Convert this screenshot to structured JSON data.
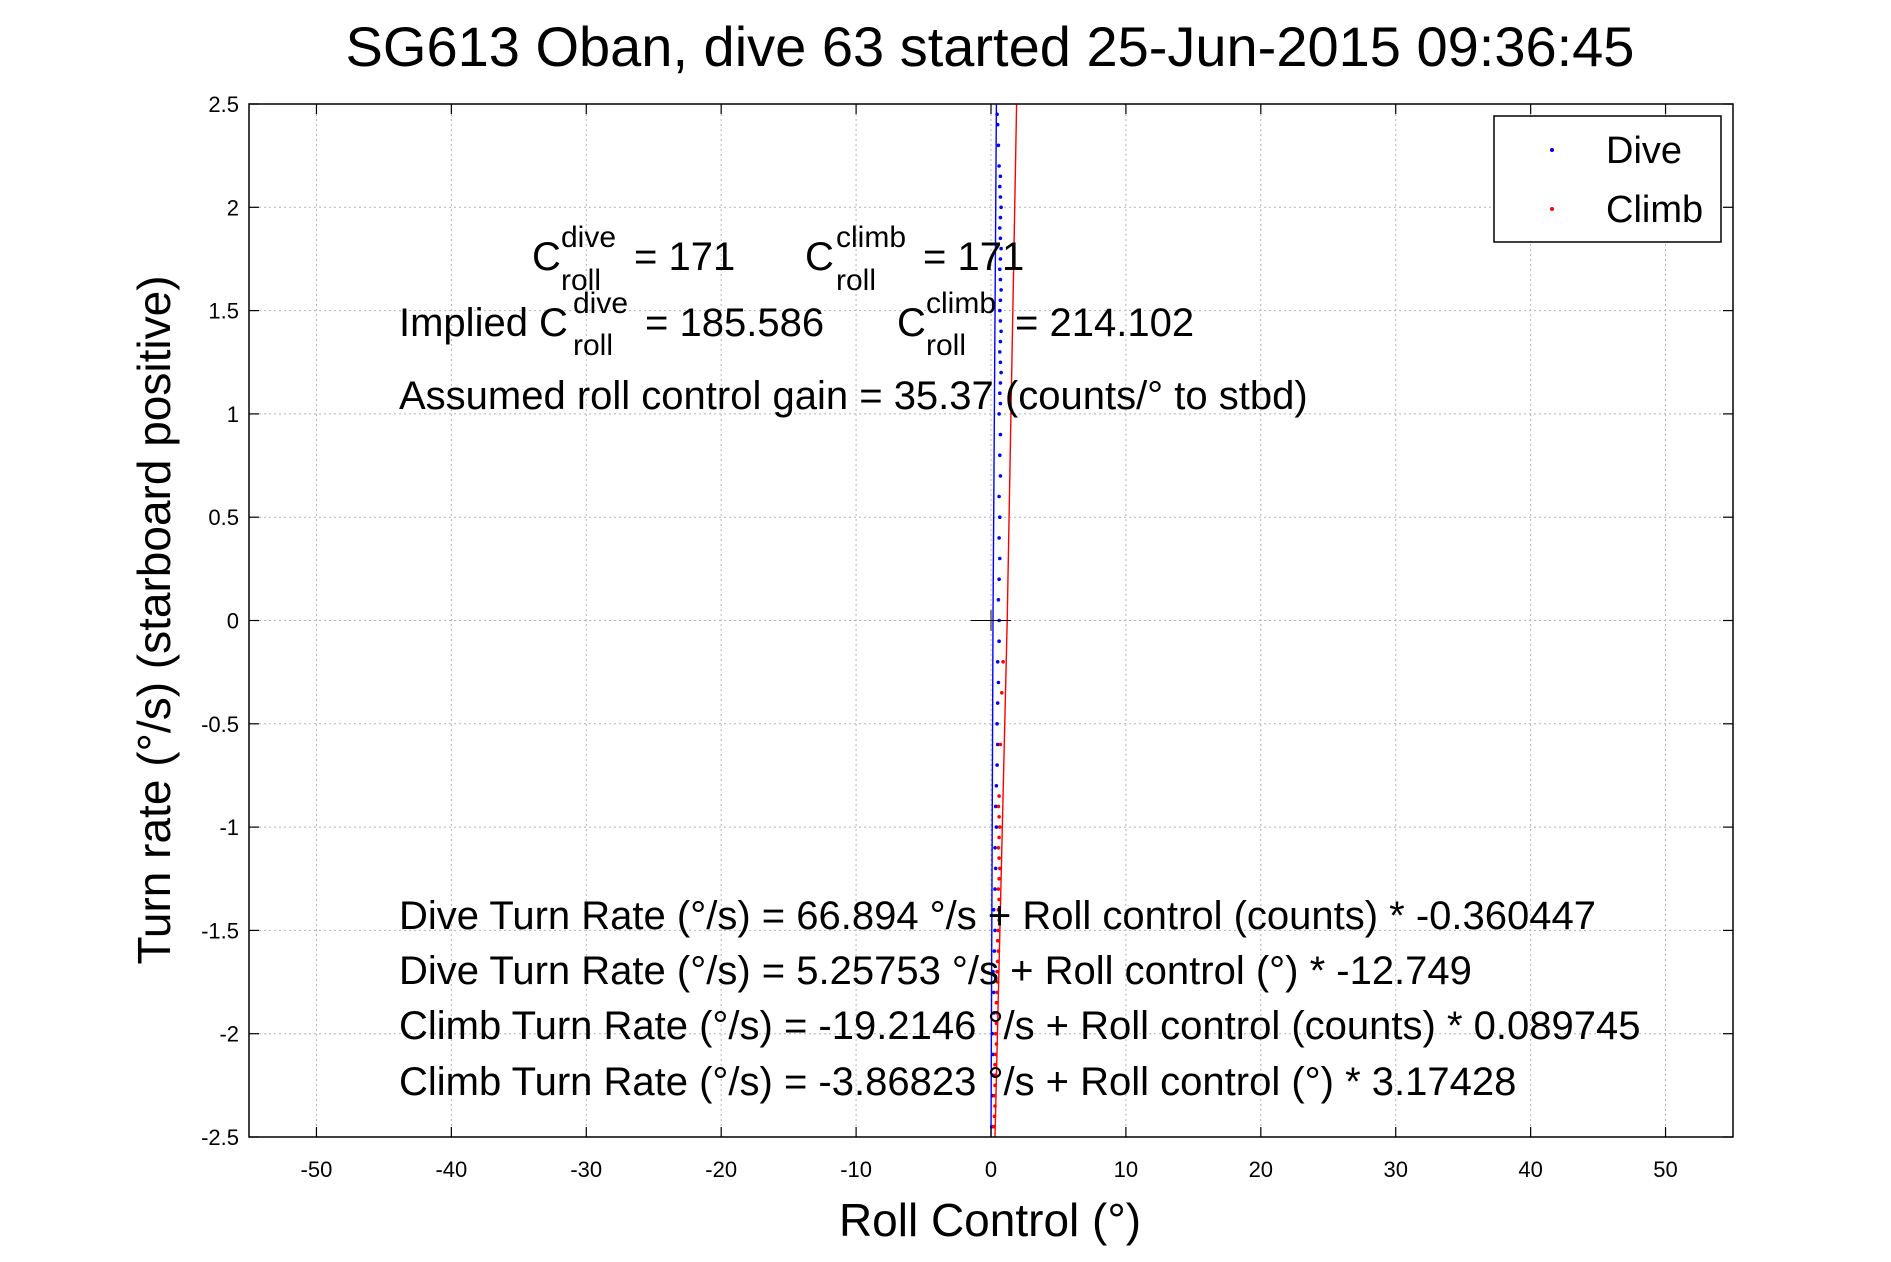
{
  "chart_data": {
    "type": "scatter",
    "title": "SG613 Oban, dive 63 started 25-Jun-2015 09:36:45",
    "xlabel": "Roll Control (°)",
    "ylabel": "Turn rate (°/s)  (starboard positive)",
    "xlim": [
      -55,
      55
    ],
    "ylim": [
      -2.5,
      2.5
    ],
    "xticks": [
      -50,
      -40,
      -30,
      -20,
      -10,
      0,
      10,
      20,
      30,
      40,
      50
    ],
    "yticks": [
      -2.5,
      -2,
      -1.5,
      -1,
      -0.5,
      0,
      0.5,
      1,
      1.5,
      2,
      2.5
    ],
    "grid": true,
    "legend_position": "top-right",
    "series": [
      {
        "name": "Dive",
        "color": "#0000ff",
        "points": [
          [
            0.05,
            -2.45
          ],
          [
            0.1,
            -2.3
          ],
          [
            0.1,
            -2.2
          ],
          [
            0.15,
            -2.1
          ],
          [
            0.1,
            -2.0
          ],
          [
            0.2,
            -1.9
          ],
          [
            0.2,
            -1.8
          ],
          [
            0.15,
            -1.7
          ],
          [
            0.25,
            -1.6
          ],
          [
            0.3,
            -1.5
          ],
          [
            0.2,
            -1.4
          ],
          [
            0.3,
            -1.3
          ],
          [
            0.35,
            -1.2
          ],
          [
            0.3,
            -1.1
          ],
          [
            0.4,
            -1.0
          ],
          [
            0.35,
            -0.9
          ],
          [
            0.4,
            -0.8
          ],
          [
            0.45,
            -0.7
          ],
          [
            0.5,
            -0.6
          ],
          [
            0.45,
            -0.5
          ],
          [
            0.5,
            -0.4
          ],
          [
            0.55,
            -0.3
          ],
          [
            0.5,
            -0.2
          ],
          [
            0.6,
            -0.1
          ],
          [
            0.6,
            0.0
          ],
          [
            0.55,
            0.1
          ],
          [
            0.6,
            0.2
          ],
          [
            0.65,
            0.3
          ],
          [
            0.6,
            0.4
          ],
          [
            0.65,
            0.5
          ],
          [
            0.6,
            0.6
          ],
          [
            0.7,
            0.7
          ],
          [
            0.65,
            0.8
          ],
          [
            0.7,
            0.9
          ],
          [
            0.6,
            1.0
          ],
          [
            0.7,
            1.05
          ],
          [
            0.65,
            1.1
          ],
          [
            0.7,
            1.15
          ],
          [
            0.75,
            1.2
          ],
          [
            0.7,
            1.25
          ],
          [
            0.65,
            1.3
          ],
          [
            0.7,
            1.35
          ],
          [
            0.75,
            1.4
          ],
          [
            0.7,
            1.45
          ],
          [
            0.65,
            1.5
          ],
          [
            0.7,
            1.55
          ],
          [
            0.75,
            1.6
          ],
          [
            0.7,
            1.65
          ],
          [
            0.65,
            1.7
          ],
          [
            0.7,
            1.75
          ],
          [
            0.75,
            1.8
          ],
          [
            0.7,
            1.85
          ],
          [
            0.65,
            1.9
          ],
          [
            0.7,
            1.95
          ],
          [
            0.75,
            2.0
          ],
          [
            0.7,
            2.05
          ],
          [
            0.65,
            2.1
          ],
          [
            0.7,
            2.15
          ],
          [
            0.6,
            2.2
          ],
          [
            0.55,
            2.3
          ],
          [
            0.5,
            2.4
          ],
          [
            0.45,
            2.45
          ]
        ]
      },
      {
        "name": "Climb",
        "color": "#ff0000",
        "points": [
          [
            0.2,
            -2.45
          ],
          [
            0.25,
            -2.4
          ],
          [
            0.3,
            -2.35
          ],
          [
            0.25,
            -2.3
          ],
          [
            0.3,
            -2.25
          ],
          [
            0.35,
            -2.2
          ],
          [
            0.3,
            -2.15
          ],
          [
            0.35,
            -2.1
          ],
          [
            0.4,
            -2.05
          ],
          [
            0.35,
            -2.0
          ],
          [
            0.4,
            -1.95
          ],
          [
            0.45,
            -1.9
          ],
          [
            0.4,
            -1.85
          ],
          [
            0.45,
            -1.8
          ],
          [
            0.5,
            -1.75
          ],
          [
            0.45,
            -1.7
          ],
          [
            0.5,
            -1.65
          ],
          [
            0.55,
            -1.6
          ],
          [
            0.5,
            -1.55
          ],
          [
            0.55,
            -1.5
          ],
          [
            0.6,
            -1.45
          ],
          [
            0.55,
            -1.4
          ],
          [
            0.6,
            -1.35
          ],
          [
            0.55,
            -1.3
          ],
          [
            0.6,
            -1.25
          ],
          [
            0.65,
            -1.2
          ],
          [
            0.6,
            -1.15
          ],
          [
            0.55,
            -1.1
          ],
          [
            0.6,
            -1.05
          ],
          [
            0.65,
            -1.0
          ],
          [
            0.6,
            -0.95
          ],
          [
            0.55,
            -0.9
          ],
          [
            0.6,
            -0.85
          ],
          [
            0.7,
            -0.6
          ],
          [
            0.8,
            -0.35
          ],
          [
            0.9,
            -0.2
          ]
        ]
      }
    ],
    "fit_lines": [
      {
        "name": "Dive fit",
        "color": "#0000ff",
        "points": [
          [
            0.0,
            -2.5
          ],
          [
            0.15,
            0.0
          ],
          [
            0.4,
            2.5
          ]
        ]
      },
      {
        "name": "Climb fit",
        "color": "#ff0000",
        "points": [
          [
            0.3,
            -2.5
          ],
          [
            1.2,
            0.0
          ],
          [
            1.9,
            2.5
          ]
        ]
      }
    ],
    "annotations": {
      "c_roll_dive": {
        "base": "C",
        "sub": "roll",
        "sup": "dive",
        "rest": "= 171"
      },
      "c_roll_climb": {
        "base": "C",
        "sub": "roll",
        "sup": "climb",
        "rest": "= 171"
      },
      "implied_dive": {
        "pre": "Implied C",
        "sub": "roll",
        "sup": "dive",
        "rest": "= 185.586"
      },
      "implied_climb": {
        "base": "C",
        "sub": "roll",
        "sup": "climb",
        "rest": "= 214.102"
      },
      "gain": "Assumed roll control gain = 35.37 (counts/° to stbd)",
      "eq1": "Dive Turn Rate (°/s) = 66.894 °/s + Roll control (counts) * -0.360447",
      "eq2": "Dive Turn Rate (°/s) = 5.25753 °/s + Roll control (°) * -12.749",
      "eq3": "Climb Turn Rate (°/s) = -19.2146 °/s + Roll control (counts) * 0.089745",
      "eq4": "Climb Turn Rate (°/s) = -3.86823 °/s + Roll control (°) * 3.17428"
    }
  }
}
